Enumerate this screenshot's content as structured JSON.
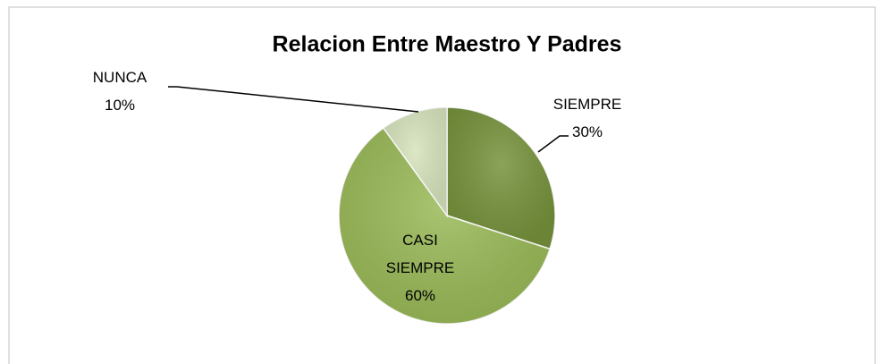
{
  "chart_data": {
    "type": "pie",
    "title": "Relacion Entre Maestro Y Padres",
    "categories": [
      "SIEMPRE",
      "CASI SIEMPRE",
      "NUNCA"
    ],
    "values": [
      30,
      60,
      10
    ],
    "value_labels": [
      "30%",
      "60%",
      "10%"
    ],
    "colors": [
      "#77933c",
      "#9bbb59",
      "#d7e4bd"
    ]
  }
}
